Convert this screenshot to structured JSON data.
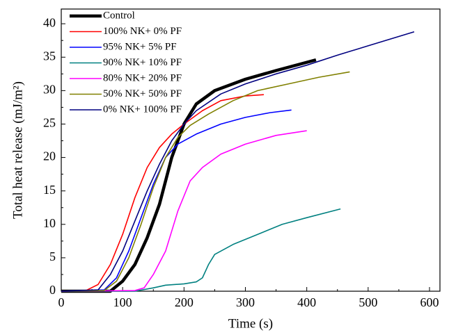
{
  "chart_data": {
    "type": "line",
    "xlabel": "Time (s)",
    "ylabel": "Total heat release (mJ/m²)",
    "xlim": [
      0,
      617
    ],
    "ylim": [
      0,
      42.2
    ],
    "xticks": [
      0,
      100,
      200,
      300,
      400,
      500,
      600
    ],
    "yticks": [
      0,
      5,
      10,
      15,
      20,
      25,
      30,
      35,
      40
    ],
    "legend": "upper left",
    "series": [
      {
        "name": "Control",
        "color": "#000000",
        "x": [
          0,
          80,
          100,
          120,
          140,
          160,
          180,
          200,
          220,
          250,
          300,
          350,
          415
        ],
        "values": [
          0,
          0,
          1.5,
          4,
          8,
          13,
          20,
          25,
          28,
          30,
          31.7,
          33,
          34.6
        ]
      },
      {
        "name": "100% NK+ 0% PF",
        "color": "#ff0000",
        "x": [
          0,
          40,
          60,
          80,
          100,
          120,
          140,
          160,
          180,
          200,
          230,
          260,
          300,
          330
        ],
        "values": [
          0,
          0.1,
          1,
          4,
          8.5,
          14,
          18.5,
          21.5,
          23.5,
          25,
          27,
          28.5,
          29.2,
          29.4
        ]
      },
      {
        "name": "95% NK+ 5% PF",
        "color": "#0000ff",
        "x": [
          0,
          70,
          90,
          110,
          130,
          150,
          170,
          190,
          220,
          260,
          300,
          340,
          375
        ],
        "values": [
          0,
          0.2,
          2,
          6,
          11,
          16,
          20,
          22,
          23.5,
          25,
          26,
          26.7,
          27.1
        ]
      },
      {
        "name": "90% NK+ 10% PF",
        "color": "#008080",
        "x": [
          0,
          120,
          150,
          170,
          200,
          220,
          230,
          240,
          250,
          280,
          320,
          360,
          400,
          455
        ],
        "values": [
          0,
          0,
          0.5,
          0.9,
          1.1,
          1.4,
          2,
          4,
          5.5,
          7,
          8.5,
          10,
          11,
          12.3
        ]
      },
      {
        "name": "80% NK+ 20% PF",
        "color": "#ff00ff",
        "x": [
          0,
          120,
          135,
          150,
          170,
          190,
          210,
          230,
          260,
          300,
          350,
          400
        ],
        "values": [
          0,
          0.1,
          0.5,
          2.5,
          6,
          12,
          16.5,
          18.5,
          20.5,
          22,
          23.3,
          24
        ]
      },
      {
        "name": "50% NK+ 50% PF",
        "color": "#808000",
        "x": [
          0,
          70,
          90,
          110,
          130,
          150,
          170,
          190,
          210,
          240,
          280,
          320,
          370,
          420,
          470
        ],
        "values": [
          0,
          0.1,
          1.5,
          5,
          10,
          15.5,
          20,
          23,
          24.8,
          26.5,
          28.5,
          30,
          31,
          32,
          32.8
        ]
      },
      {
        "name": "0% NK+ 100% PF",
        "color": "#000080",
        "x": [
          0,
          60,
          80,
          100,
          120,
          140,
          160,
          180,
          200,
          220,
          260,
          300,
          350,
          400,
          450,
          500,
          575
        ],
        "values": [
          0,
          0.2,
          2.5,
          6,
          10.5,
          15,
          19,
          22.5,
          25,
          27,
          29.5,
          31,
          32.5,
          33.8,
          35.3,
          36.7,
          38.8
        ]
      }
    ]
  }
}
